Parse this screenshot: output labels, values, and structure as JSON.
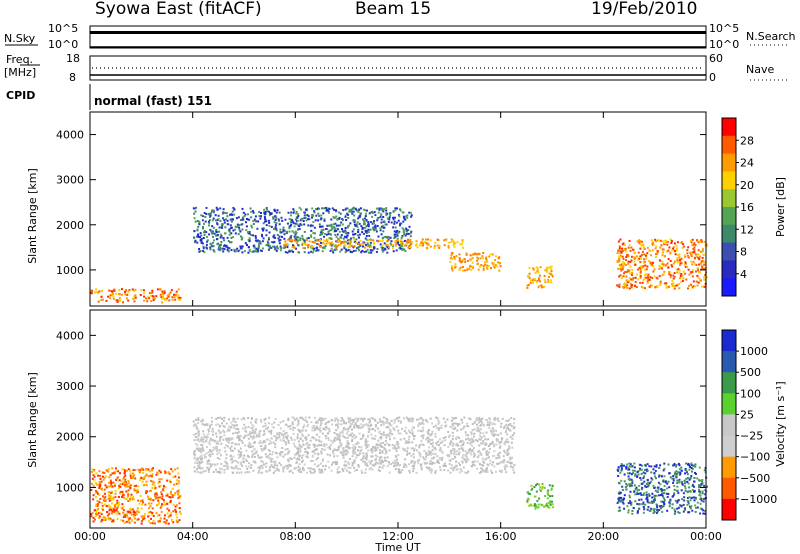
{
  "header": {
    "station": "Syowa East (fitACF)",
    "beam": "Beam 15",
    "date": "19/Feb/2010"
  },
  "nsky_panel": {
    "left_label": "N.Sky",
    "right_label": "N.Search",
    "ticks_left": [
      "10^5",
      "10^0"
    ],
    "ticks_right": [
      "10^5",
      "10^0"
    ]
  },
  "freq_panel": {
    "left_label_1": "Freq.",
    "left_label_2": "[MHz]",
    "ticks_left": [
      "18",
      "8"
    ],
    "ticks_right": [
      "60",
      "0"
    ],
    "right_label": "Nave"
  },
  "cpid": {
    "label": "CPID",
    "value": "normal (fast) 151"
  },
  "colors": {
    "power_scale": [
      "#1a1aff",
      "#2a2ac0",
      "#3c4fb0",
      "#3c8a6a",
      "#55a455",
      "#9ac830",
      "#ffd000",
      "#ff9a00",
      "#ff5a00",
      "#ff0000"
    ],
    "velocity_scale": [
      "#ff0000",
      "#ff5a00",
      "#ff9a00",
      "#cfcfcf",
      "#c8c8c8",
      "#5bd130",
      "#3a9a4a",
      "#2a5ab0",
      "#1a2ad0"
    ]
  },
  "chart_data": [
    {
      "type": "heatmap",
      "panel": "power",
      "ylabel": "Slant Range [km]",
      "yticks": [
        "4000",
        "3000",
        "2000",
        "1000"
      ],
      "ylim": [
        200,
        4500
      ],
      "xlim": [
        "00:00",
        "24:00"
      ],
      "colorbar_label": "Power [dB]",
      "colorbar_ticks": [
        "28",
        "24",
        "20",
        "16",
        "12",
        "8",
        "4"
      ],
      "features": [
        {
          "t_start": 0.0,
          "t_end": 3.5,
          "range_lo": 300,
          "range_hi": 600,
          "level": "orange-red"
        },
        {
          "t_start": 4.0,
          "t_end": 12.5,
          "range_lo": 1400,
          "range_hi": 2400,
          "level": "blue-green"
        },
        {
          "t_start": 7.5,
          "t_end": 14.5,
          "range_lo": 1500,
          "range_hi": 1700,
          "level": "orange"
        },
        {
          "t_start": 14.0,
          "t_end": 16.0,
          "range_lo": 1000,
          "range_hi": 1400,
          "level": "orange"
        },
        {
          "t_start": 17.0,
          "t_end": 18.0,
          "range_lo": 600,
          "range_hi": 1100,
          "level": "orange"
        },
        {
          "t_start": 20.5,
          "t_end": 24.0,
          "range_lo": 600,
          "range_hi": 1700,
          "level": "orange-red"
        }
      ]
    },
    {
      "type": "heatmap",
      "panel": "velocity",
      "ylabel": "Slant Range [km]",
      "yticks": [
        "4000",
        "3000",
        "2000",
        "1000"
      ],
      "ylim": [
        200,
        4500
      ],
      "xlim": [
        "00:00",
        "24:00"
      ],
      "xticks": [
        "00:00",
        "04:00",
        "08:00",
        "12:00",
        "16:00",
        "20:00",
        "00:00"
      ],
      "xlabel": "Time UT",
      "colorbar_label": "Velocity [m s⁻¹]",
      "colorbar_ticks": [
        "1000",
        "500",
        "100",
        "25",
        "−25",
        "−100",
        "−500",
        "−1000"
      ],
      "features": [
        {
          "t_start": 0.0,
          "t_end": 3.5,
          "range_lo": 300,
          "range_hi": 1400,
          "level": "orange-red"
        },
        {
          "t_start": 4.0,
          "t_end": 16.5,
          "range_lo": 1300,
          "range_hi": 2400,
          "level": "grey"
        },
        {
          "t_start": 17.0,
          "t_end": 18.0,
          "range_lo": 600,
          "range_hi": 1100,
          "level": "green"
        },
        {
          "t_start": 20.5,
          "t_end": 24.0,
          "range_lo": 500,
          "range_hi": 1500,
          "level": "blue-green"
        }
      ]
    }
  ]
}
